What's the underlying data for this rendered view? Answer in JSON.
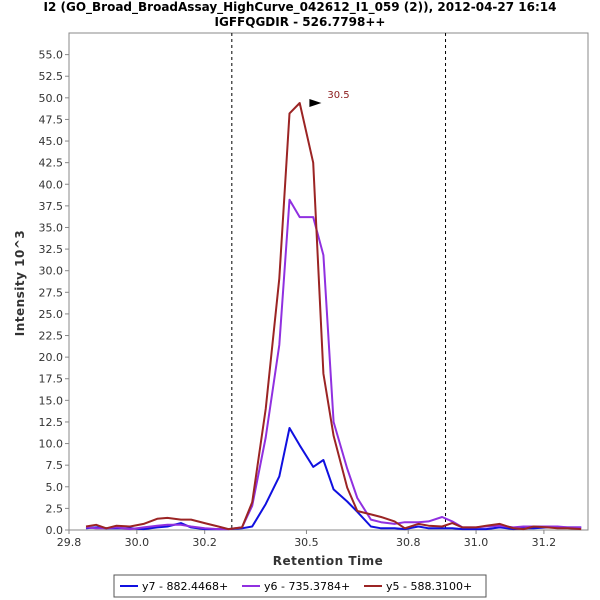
{
  "chart_data": {
    "type": "line",
    "title": "I2 (GO_Broad_BroadAssay_HighCurve_042612_I1_059 (2)), 2012-04-27 16:14",
    "subtitle": "IGFFQGDIR - 526.7798++",
    "xlabel": "Retention Time",
    "ylabel": "Intensity 10^3",
    "xlim": [
      29.8,
      31.33
    ],
    "ylim": [
      0,
      57.5
    ],
    "x_ticks": [
      29.8,
      30.0,
      30.2,
      30.5,
      30.8,
      31.0,
      31.2
    ],
    "x_tick_labels": [
      "29.8",
      "30.0",
      "30.2",
      "30.5",
      "30.8",
      "31.0",
      "31.2"
    ],
    "y_ticks": [
      0,
      2.5,
      5,
      7.5,
      10,
      12.5,
      15,
      17.5,
      20,
      22.5,
      25,
      27.5,
      30,
      32.5,
      35,
      37.5,
      40,
      42.5,
      45,
      47.5,
      50,
      52.5,
      55
    ],
    "y_tick_labels": [
      "0.0",
      "2.5",
      "5.0",
      "7.5",
      "10.0",
      "12.5",
      "15.0",
      "17.5",
      "20.0",
      "22.5",
      "25.0",
      "27.5",
      "30.0",
      "32.5",
      "35.0",
      "37.5",
      "40.0",
      "42.5",
      "45.0",
      "47.5",
      "50.0",
      "52.5",
      "55.0"
    ],
    "vlines": [
      30.28,
      30.91
    ],
    "annotation": {
      "x": 30.55,
      "y": 49.4,
      "text": "30.5"
    },
    "legend_position": "bottom",
    "series": [
      {
        "name": "y7 - 882.4468+",
        "color": "#1010e0",
        "x": [
          29.85,
          29.88,
          29.91,
          29.94,
          29.98,
          30.02,
          30.06,
          30.09,
          30.13,
          30.16,
          30.2,
          30.24,
          30.27,
          30.31,
          30.34,
          30.38,
          30.42,
          30.45,
          30.48,
          30.52,
          30.55,
          30.58,
          30.62,
          30.65,
          30.69,
          30.72,
          30.76,
          30.79,
          30.83,
          30.86,
          30.9,
          30.93,
          30.96,
          31.0,
          31.03,
          31.07,
          31.11,
          31.14,
          31.17,
          31.21,
          31.24,
          31.27,
          31.31
        ],
        "values": [
          0.2,
          0.3,
          0.2,
          0.2,
          0.2,
          0.1,
          0.3,
          0.4,
          0.8,
          0.3,
          0.1,
          0.1,
          0.1,
          0.2,
          0.4,
          3.0,
          6.2,
          11.8,
          9.8,
          7.3,
          8.1,
          4.7,
          3.3,
          2.1,
          0.4,
          0.2,
          0.2,
          0.1,
          0.4,
          0.2,
          0.2,
          0.2,
          0.1,
          0.1,
          0.1,
          0.3,
          0.1,
          0.2,
          0.2,
          0.3,
          0.3,
          0.3,
          0.3
        ]
      },
      {
        "name": "y6 - 735.3784+",
        "color": "#9030e0",
        "x": [
          29.85,
          29.88,
          29.91,
          29.94,
          29.98,
          30.02,
          30.06,
          30.09,
          30.13,
          30.16,
          30.2,
          30.24,
          30.27,
          30.31,
          30.34,
          30.38,
          30.42,
          30.45,
          30.48,
          30.52,
          30.55,
          30.58,
          30.62,
          30.65,
          30.69,
          30.72,
          30.76,
          30.79,
          30.83,
          30.86,
          30.9,
          30.93,
          30.96,
          31.0,
          31.03,
          31.07,
          31.11,
          31.14,
          31.17,
          31.21,
          31.24,
          31.27,
          31.31
        ],
        "values": [
          0.3,
          0.2,
          0.2,
          0.3,
          0.1,
          0.3,
          0.5,
          0.6,
          0.6,
          0.4,
          0.2,
          0.1,
          0.1,
          0.3,
          2.8,
          10.7,
          21.4,
          38.2,
          36.2,
          36.2,
          31.8,
          12.5,
          7.1,
          3.7,
          1.2,
          0.9,
          0.7,
          0.9,
          0.9,
          1.0,
          1.5,
          1.0,
          0.3,
          0.3,
          0.4,
          0.5,
          0.3,
          0.4,
          0.4,
          0.4,
          0.4,
          0.3,
          0.3
        ]
      },
      {
        "name": "y5 - 588.3100+",
        "color": "#9b2424",
        "x": [
          29.85,
          29.88,
          29.91,
          29.94,
          29.98,
          30.02,
          30.06,
          30.09,
          30.13,
          30.16,
          30.2,
          30.24,
          30.27,
          30.31,
          30.34,
          30.38,
          30.42,
          30.45,
          30.48,
          30.52,
          30.55,
          30.58,
          30.62,
          30.65,
          30.69,
          30.72,
          30.76,
          30.79,
          30.83,
          30.86,
          30.9,
          30.93,
          30.96,
          31.0,
          31.03,
          31.07,
          31.11,
          31.14,
          31.17,
          31.21,
          31.24,
          31.27,
          31.31
        ],
        "values": [
          0.4,
          0.6,
          0.2,
          0.5,
          0.4,
          0.7,
          1.3,
          1.4,
          1.2,
          1.2,
          0.8,
          0.4,
          0.1,
          0.3,
          3.2,
          14.0,
          29.1,
          48.2,
          49.4,
          42.5,
          18.1,
          10.9,
          4.9,
          2.2,
          1.8,
          1.5,
          1.0,
          0.2,
          0.7,
          0.5,
          0.4,
          0.8,
          0.3,
          0.3,
          0.5,
          0.7,
          0.2,
          0.1,
          0.4,
          0.3,
          0.2,
          0.2,
          0.1
        ]
      }
    ]
  }
}
